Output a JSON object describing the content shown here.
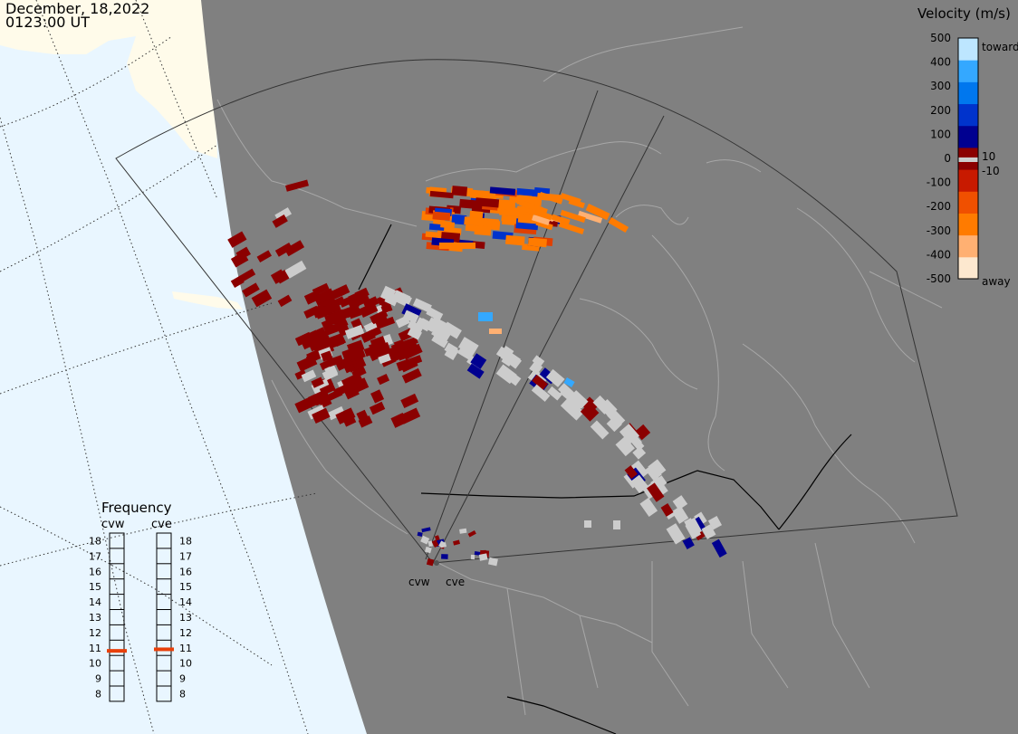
{
  "header": {
    "date": "December, 18,2022",
    "time": "0123:00 UT"
  },
  "legend": {
    "title": "Velocity (m/s)",
    "ticks": [
      "500",
      "400",
      "300",
      "200",
      "100",
      "0",
      "-100",
      "-200",
      "-300",
      "-400",
      "-500"
    ],
    "toward_label": "toward",
    "away_label": "away",
    "pos_threshold_label": "10",
    "neg_threshold_label": "-10",
    "colors": [
      "#fde8cf",
      "#ffb072",
      "#ff7b00",
      "#f05000",
      "#c81a00",
      "#8b0000",
      "#000090",
      "#0033cc",
      "#0077ee",
      "#34a8ff",
      "#bde6ff"
    ]
  },
  "frequency_panel": {
    "title": "Frequency",
    "radars": [
      {
        "name": "cvw",
        "frequency": 10.8
      },
      {
        "name": "cve",
        "frequency": 10.9
      }
    ],
    "levels": [
      "18",
      "17",
      "16",
      "15",
      "14",
      "13",
      "12",
      "11",
      "10",
      "9",
      "8"
    ],
    "marker_color": "#e8400a"
  },
  "radar_sites": [
    {
      "name": "cvw"
    },
    {
      "name": "cve"
    }
  ],
  "colors": {
    "land": "#808080",
    "ocean_outside": "#e9f6ff",
    "alaska_land": "#fffbea",
    "border": "#000000",
    "coast": "#a7a7a7",
    "ground_scatter": "#cccccc"
  }
}
